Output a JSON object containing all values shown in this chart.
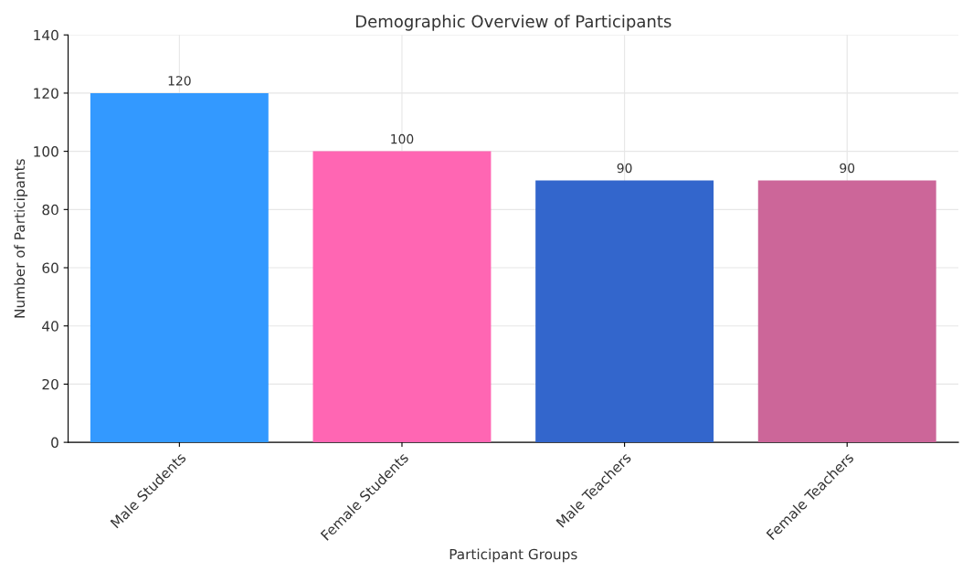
{
  "chart_data": {
    "type": "bar",
    "title": "Demographic Overview of Participants",
    "xlabel": "Participant Groups",
    "ylabel": "Number of Participants",
    "categories": [
      "Male Students",
      "Female Students",
      "Male Teachers",
      "Female Teachers"
    ],
    "values": [
      120,
      100,
      90,
      90
    ],
    "colors": [
      "#3399ff",
      "#ff66b3",
      "#3366cc",
      "#cc6699"
    ],
    "ylim": [
      0,
      140
    ],
    "yticks": [
      0,
      20,
      40,
      60,
      80,
      100,
      120,
      140
    ],
    "grid": true,
    "data_labels": true
  }
}
